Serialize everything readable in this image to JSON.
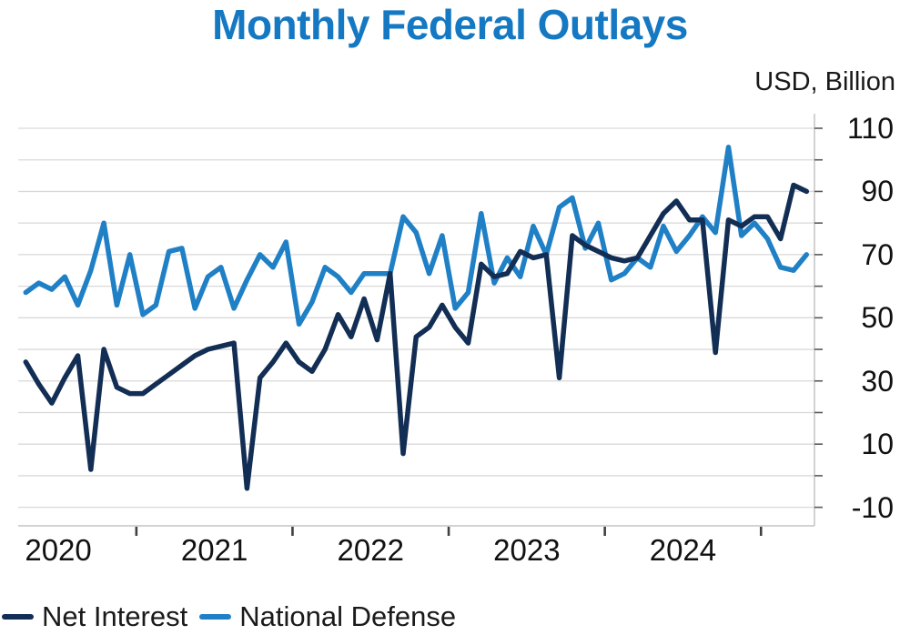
{
  "title": "Monthly Federal Outlays",
  "y_axis_unit_label": "USD, Billion",
  "colors": {
    "title": "#1478c2",
    "net_interest_line": "#132e54",
    "national_defense_line": "#2080c6",
    "gridline": "#d9d9d9",
    "axis_border": "#c4c4c4",
    "y_tick": "#595959",
    "x_tick": "#404040",
    "label_text": "#1a1a1a"
  },
  "legend": {
    "items": [
      {
        "label": "Net Interest",
        "series": "net_interest"
      },
      {
        "label": "National Defense",
        "series": "national_defense"
      }
    ]
  },
  "chart_data": {
    "type": "line",
    "title": "Monthly Federal Outlays",
    "ylabel": "USD, Billion",
    "frequency": "monthly",
    "x_start": "2019-10",
    "x_end": "2024-10",
    "x_months": [
      "2019-10",
      "2019-11",
      "2019-12",
      "2020-01",
      "2020-02",
      "2020-03",
      "2020-04",
      "2020-05",
      "2020-06",
      "2020-07",
      "2020-08",
      "2020-09",
      "2020-10",
      "2020-11",
      "2020-12",
      "2021-01",
      "2021-02",
      "2021-03",
      "2021-04",
      "2021-05",
      "2021-06",
      "2021-07",
      "2021-08",
      "2021-09",
      "2021-10",
      "2021-11",
      "2021-12",
      "2022-01",
      "2022-02",
      "2022-03",
      "2022-04",
      "2022-05",
      "2022-06",
      "2022-07",
      "2022-08",
      "2022-09",
      "2022-10",
      "2022-11",
      "2022-12",
      "2023-01",
      "2023-02",
      "2023-03",
      "2023-04",
      "2023-05",
      "2023-06",
      "2023-07",
      "2023-08",
      "2023-09",
      "2023-10",
      "2023-11",
      "2023-12",
      "2024-01",
      "2024-02",
      "2024-03",
      "2024-04",
      "2024-05",
      "2024-06",
      "2024-07",
      "2024-08",
      "2024-09",
      "2024-10"
    ],
    "x_tick_years": [
      2020,
      2021,
      2022,
      2023,
      2024
    ],
    "y_ticks_labeled": [
      110,
      90,
      70,
      50,
      30,
      10,
      -10
    ],
    "y_gridlines": [
      110,
      100,
      90,
      80,
      70,
      60,
      50,
      40,
      30,
      20,
      10,
      0,
      -10
    ],
    "ylim": [
      -16,
      115
    ],
    "grid": "horizontal-only",
    "legend_position": "bottom-left",
    "series": [
      {
        "name": "Net Interest",
        "color": "#132e54",
        "values": [
          36,
          29,
          23,
          31,
          38,
          2,
          40,
          28,
          26,
          26,
          29,
          32,
          35,
          38,
          40,
          41,
          42,
          -4,
          31,
          36,
          42,
          36,
          33,
          40,
          51,
          44,
          56,
          43,
          64,
          7,
          44,
          47,
          54,
          47,
          42,
          67,
          63,
          64,
          71,
          69,
          70,
          31,
          76,
          73,
          71,
          69,
          68,
          69,
          76,
          83,
          87,
          81,
          81,
          39,
          81,
          79,
          82,
          82,
          75,
          92,
          90
        ]
      },
      {
        "name": "National Defense",
        "color": "#2080c6",
        "values": [
          58,
          61,
          59,
          63,
          54,
          65,
          80,
          54,
          70,
          51,
          54,
          71,
          72,
          53,
          63,
          66,
          53,
          62,
          70,
          66,
          74,
          48,
          55,
          66,
          63,
          58,
          64,
          64,
          64,
          82,
          77,
          64,
          76,
          53,
          58,
          83,
          61,
          69,
          63,
          79,
          70,
          85,
          88,
          72,
          80,
          62,
          64,
          69,
          66,
          79,
          71,
          76,
          82,
          77,
          104,
          76,
          80,
          75,
          66,
          65,
          70
        ]
      }
    ]
  }
}
